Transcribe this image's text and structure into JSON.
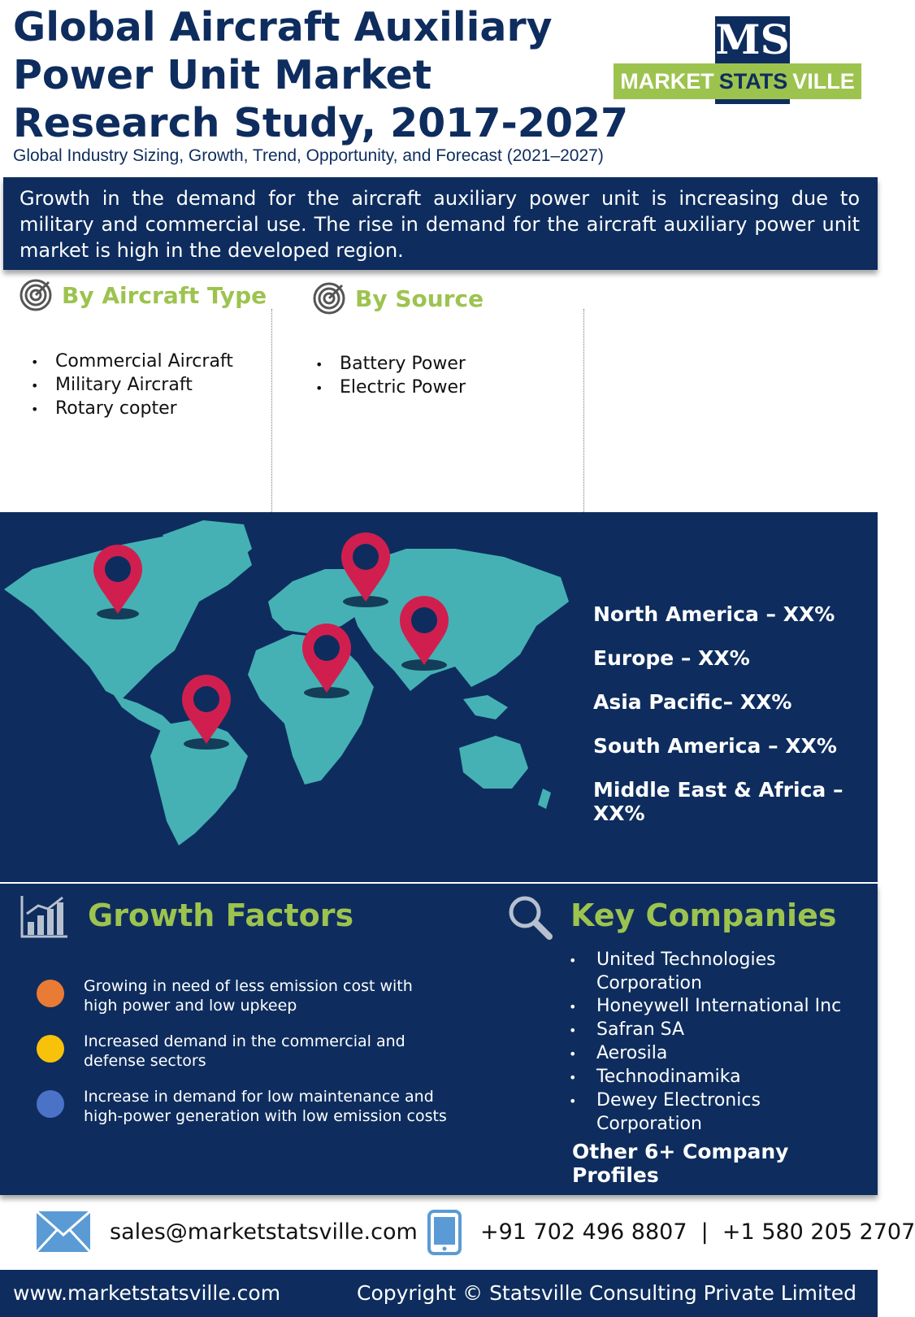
{
  "header": {
    "title": "Global Aircraft Auxiliary Power Unit Market Research Study, 2017-2027",
    "subtitle": "Global Industry Sizing, Growth, Trend, Opportunity, and Forecast (2021–2027)",
    "logo": {
      "monogram": "MS",
      "word1": "MARKET",
      "word2": "STATS",
      "word3": "VILLE"
    }
  },
  "intro": "Growth in the demand for the aircraft auxiliary power unit is increasing due to military and commercial use. The rise in demand for the aircraft auxiliary power unit market is high in the developed region.",
  "segments": {
    "aircraft_type": {
      "title": "By Aircraft Type",
      "items": [
        "Commercial Aircraft",
        "Military Aircraft",
        "Rotary copter"
      ]
    },
    "source": {
      "title": "By Source",
      "items": [
        "Battery Power",
        "Electric Power"
      ]
    }
  },
  "regions": [
    "North America – XX%",
    "Europe – XX%",
    "Asia Pacific– XX%",
    "South America – XX%",
    "Middle East & Africa – XX%"
  ],
  "growth_factors": {
    "title": "Growth Factors",
    "items": [
      {
        "text": "Growing in need of less emission cost with high power and low upkeep",
        "color": "#ea7b35"
      },
      {
        "text": "Increased demand in the commercial and defense sectors",
        "color": "#f9c20a"
      },
      {
        "text": "Increase in demand for low maintenance and high-power generation with low emission costs",
        "color": "#4a73c8"
      }
    ]
  },
  "key_companies": {
    "title": "Key Companies",
    "items": [
      "United Technologies Corporation",
      "Honeywell International Inc",
      "Safran SA",
      "Aerosila",
      "Technodinamika",
      "Dewey Electronics Corporation"
    ],
    "other": "Other 6+ Company Profiles"
  },
  "contact": {
    "email": "sales@marketstatsville.com",
    "phone": "+91 702 496 8807  |  +1 580 205 2707"
  },
  "footer": {
    "website": "www.marketstatsville.com",
    "copyright": "Copyright © Statsville Consulting Private Limited"
  },
  "colors": {
    "navy": "#0e2d5e",
    "accent": "#9dc34f",
    "map": "#45b1b4",
    "pin": "#d01f4e"
  }
}
